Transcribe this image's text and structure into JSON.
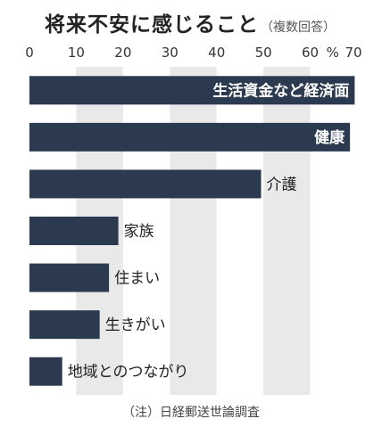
{
  "chart_data": {
    "type": "bar",
    "orientation": "horizontal",
    "title": "将来不安に感じること",
    "subtitle": "（複数回答）",
    "unit": "%",
    "xlim": [
      0,
      70
    ],
    "ticks": [
      0,
      10,
      20,
      30,
      40,
      50,
      60,
      70
    ],
    "categories": [
      "生活資金など経済面",
      "健康",
      "介護",
      "家族",
      "住まい",
      "生きがい",
      "地域とのつながり"
    ],
    "values": [
      69.5,
      68.5,
      49.5,
      19,
      17,
      15,
      7
    ],
    "label_position": [
      "inside",
      "inside",
      "outside",
      "outside",
      "outside",
      "outside",
      "outside"
    ],
    "bar_color": "#2b3a4e",
    "band_color": "#e9e9ea",
    "grid": "alternating-bands",
    "note": "（注）日経郵送世論調査"
  }
}
